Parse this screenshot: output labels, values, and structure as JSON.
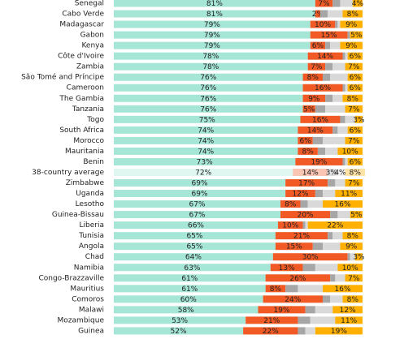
{
  "chart_data": {
    "type": "stacked-bar-horizontal",
    "categories": [
      "Senegal",
      "Cabo Verde",
      "Madagascar",
      "Gabon",
      "Kenya",
      "Côte d'Ivoire",
      "Zambia",
      "São Tomé and Príncipe",
      "Cameroon",
      "The Gambia",
      "Tanzania",
      "Togo",
      "South Africa",
      "Morocco",
      "Mauritania",
      "Benin",
      "38-country average",
      "Zimbabwe",
      "Uganda",
      "Lesotho",
      "Guinea-Bissau",
      "Liberia",
      "Tunisia",
      "Angola",
      "Chad",
      "Namibia",
      "Congo-Brazzaville",
      "Mauritius",
      "Comoros",
      "Malawi",
      "Mozambique",
      "Guinea"
    ],
    "xlim": [
      0,
      100
    ],
    "series": [
      {
        "color": "#a5e6d6",
        "values": [
          81,
          81,
          79,
          79,
          79,
          78,
          78,
          76,
          76,
          76,
          76,
          75,
          74,
          74,
          74,
          73,
          72,
          69,
          69,
          67,
          67,
          66,
          65,
          65,
          64,
          63,
          61,
          61,
          60,
          58,
          53,
          52
        ],
        "value_labels": [
          "81%",
          "81%",
          "79%",
          "79%",
          "79%",
          "78%",
          "78%",
          "76%",
          "76%",
          "76%",
          "76%",
          "75%",
          "74%",
          "74%",
          "74%",
          "73%",
          "72%",
          "69%",
          "69%",
          "67%",
          "67%",
          "66%",
          "65%",
          "65%",
          "64%",
          "63%",
          "61%",
          "61%",
          "60%",
          "58%",
          "53%",
          "52%"
        ]
      },
      {
        "color": "#f15a24",
        "values": [
          7,
          2,
          10,
          15,
          6,
          14,
          7,
          8,
          16,
          9,
          5,
          16,
          14,
          6,
          8,
          19,
          14,
          17,
          12,
          8,
          20,
          10,
          21,
          15,
          30,
          13,
          26,
          8,
          24,
          19,
          21,
          22
        ],
        "value_labels": [
          "7%",
          "2%",
          "10%",
          "15%",
          "6%",
          "14%",
          "7%",
          "8%",
          "16%",
          "9%",
          "5%",
          "16%",
          "14%",
          "6%",
          "8%",
          "19%",
          "14%",
          "17%",
          "12%",
          "8%",
          "20%",
          "10%",
          "21%",
          "15%",
          "30%",
          "13%",
          "26%",
          "8%",
          "24%",
          "19%",
          "21%",
          "22%"
        ]
      },
      {
        "color": "#a6a6a6",
        "values": [
          3,
          3,
          1,
          1,
          2,
          1,
          3,
          3,
          1,
          3,
          4,
          2,
          2,
          4,
          3,
          1,
          3,
          3,
          3,
          3,
          3,
          1,
          2,
          4,
          1,
          5,
          2,
          5,
          3,
          4,
          5,
          3
        ],
        "value_labels": [
          null,
          null,
          null,
          null,
          null,
          null,
          null,
          null,
          null,
          null,
          null,
          null,
          null,
          null,
          null,
          null,
          "3%",
          null,
          null,
          null,
          null,
          null,
          null,
          null,
          null,
          null,
          null,
          null,
          null,
          null,
          null,
          null
        ]
      },
      {
        "color": "#d9d9d9",
        "values": [
          5,
          6,
          1,
          0,
          4,
          1,
          5,
          7,
          1,
          4,
          8,
          4,
          4,
          9,
          5,
          1,
          4,
          4,
          5,
          6,
          5,
          1,
          4,
          7,
          2,
          9,
          4,
          10,
          5,
          7,
          10,
          4
        ],
        "value_labels": [
          null,
          null,
          null,
          null,
          null,
          null,
          null,
          null,
          null,
          null,
          null,
          null,
          null,
          null,
          null,
          null,
          "4%",
          null,
          null,
          null,
          null,
          null,
          null,
          null,
          null,
          null,
          null,
          null,
          null,
          null,
          null,
          null
        ]
      },
      {
        "color": "#ffb000",
        "values": [
          4,
          8,
          9,
          5,
          9,
          6,
          7,
          6,
          6,
          8,
          7,
          3,
          6,
          7,
          10,
          6,
          8,
          7,
          11,
          16,
          5,
          22,
          8,
          9,
          3,
          10,
          7,
          16,
          8,
          12,
          11,
          19
        ],
        "value_labels": [
          "4%",
          "8%",
          "9%",
          "5%",
          "9%",
          "6%",
          "7%",
          "6%",
          "6%",
          "8%",
          "7%",
          "3%",
          "6%",
          "7%",
          "10%",
          "6%",
          "8%",
          "7%",
          "11%",
          "16%",
          "5%",
          "22%",
          "8%",
          "9%",
          "3%",
          "10%",
          "7%",
          "16%",
          "8%",
          "12%",
          "11%",
          "19%"
        ]
      }
    ]
  }
}
